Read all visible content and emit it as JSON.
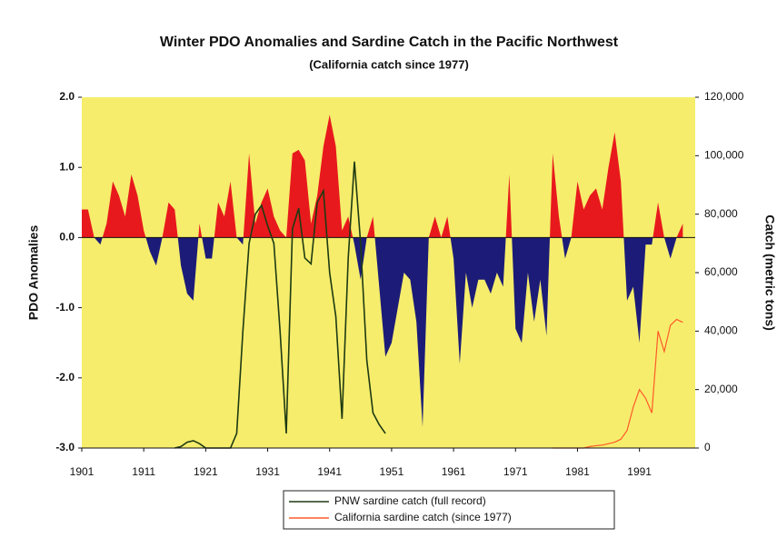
{
  "chart_data": {
    "type": "area-line",
    "title": "Winter PDO Anomalies and Sardine Catch in the Pacific Northwest",
    "subtitle": "(California catch since 1977)",
    "y_label": "PDO Anomalies",
    "y2_label": "Catch (metric tons)",
    "xlim": [
      1901,
      2000
    ],
    "xticks": [
      1901,
      1911,
      1921,
      1931,
      1941,
      1951,
      1961,
      1971,
      1981,
      1991
    ],
    "ylim": [
      -3,
      2
    ],
    "yticks": [
      {
        "value": 2,
        "label": "2.0"
      },
      {
        "value": 1,
        "label": "1.0"
      },
      {
        "value": 0,
        "label": "0.0"
      },
      {
        "value": -1,
        "label": "-1.0"
      },
      {
        "value": -2,
        "label": "-2.0"
      },
      {
        "value": -3,
        "label": "-3.0"
      }
    ],
    "y2lim": [
      0,
      120000
    ],
    "y2ticks": [
      0,
      {
        "value": 20000,
        "label": "20,000"
      },
      {
        "value": 40000,
        "label": "40,000"
      },
      {
        "value": 60000,
        "label": "60,000"
      },
      {
        "value": 80000,
        "label": "80,000"
      },
      {
        "value": 100000,
        "label": "100,000"
      },
      {
        "value": 120000,
        "label": "120,000"
      }
    ],
    "background": "#f6ed6c",
    "pdo": {
      "positive_color": "#e8191c",
      "negative_color": "#1c1c78",
      "x": [
        1901,
        1902,
        1903,
        1904,
        1905,
        1906,
        1907,
        1908,
        1909,
        1910,
        1911,
        1912,
        1913,
        1914,
        1915,
        1916,
        1917,
        1918,
        1919,
        1920,
        1921,
        1922,
        1923,
        1924,
        1925,
        1926,
        1927,
        1928,
        1929,
        1930,
        1931,
        1932,
        1933,
        1934,
        1935,
        1936,
        1937,
        1938,
        1939,
        1940,
        1941,
        1942,
        1943,
        1944,
        1945,
        1946,
        1947,
        1948,
        1949,
        1950,
        1951,
        1952,
        1953,
        1954,
        1955,
        1956,
        1957,
        1958,
        1959,
        1960,
        1961,
        1962,
        1963,
        1964,
        1965,
        1966,
        1967,
        1968,
        1969,
        1970,
        1971,
        1972,
        1973,
        1974,
        1975,
        1976,
        1977,
        1978,
        1979,
        1980,
        1981,
        1982,
        1983,
        1984,
        1985,
        1986,
        1987,
        1988,
        1989,
        1990,
        1991,
        1992,
        1993,
        1994,
        1995,
        1996,
        1997,
        1998
      ],
      "values": [
        0.4,
        0.4,
        0.0,
        -0.1,
        0.2,
        0.8,
        0.6,
        0.3,
        0.9,
        0.6,
        0.1,
        -0.2,
        -0.4,
        0.0,
        0.5,
        0.4,
        -0.4,
        -0.8,
        -0.9,
        0.2,
        -0.3,
        -0.3,
        0.5,
        0.3,
        0.8,
        0.0,
        -0.1,
        1.2,
        0.2,
        0.5,
        0.7,
        0.3,
        0.1,
        0.0,
        1.2,
        1.25,
        1.1,
        0.2,
        0.6,
        1.3,
        1.75,
        1.3,
        0.1,
        0.3,
        -0.1,
        -0.6,
        0.0,
        0.3,
        -0.7,
        -1.7,
        -1.5,
        -1.0,
        -0.5,
        -0.6,
        -1.2,
        -2.7,
        0.0,
        0.3,
        0.0,
        0.3,
        -0.3,
        -1.8,
        -0.5,
        -1.0,
        -0.6,
        -0.6,
        -0.8,
        -0.5,
        -0.7,
        0.9,
        -1.3,
        -1.5,
        -0.5,
        -1.2,
        -0.6,
        -1.4,
        1.2,
        0.3,
        -0.3,
        0.0,
        0.8,
        0.4,
        0.6,
        0.7,
        0.4,
        1.0,
        1.5,
        0.8,
        -0.9,
        -0.7,
        -1.5,
        -0.1,
        -0.1,
        0.5,
        0.0,
        -0.3,
        0.0,
        0.2
      ]
    },
    "series": [
      {
        "name": "PNW sardine catch (full record)",
        "color": "#1e3a12",
        "axis": "y2",
        "x": [
          1916,
          1917,
          1918,
          1919,
          1920,
          1921,
          1922,
          1923,
          1924,
          1925,
          1926,
          1927,
          1928,
          1929,
          1930,
          1931,
          1932,
          1933,
          1934,
          1935,
          1936,
          1937,
          1938,
          1939,
          1940,
          1941,
          1942,
          1943,
          1944,
          1945,
          1946,
          1947,
          1948,
          1949,
          1950
        ],
        "values": [
          0,
          500,
          2000,
          2500,
          1500,
          0,
          0,
          0,
          0,
          0,
          5000,
          40000,
          70000,
          80000,
          83000,
          76000,
          70000,
          40000,
          5000,
          75000,
          82000,
          65000,
          63000,
          84000,
          88000,
          60000,
          45000,
          10000,
          65000,
          98000,
          70000,
          30000,
          12000,
          8000,
          5000
        ]
      },
      {
        "name": "California sardine catch (since 1977)",
        "color": "#ff5a2a",
        "axis": "y2",
        "x": [
          1977,
          1978,
          1979,
          1980,
          1981,
          1982,
          1983,
          1984,
          1985,
          1986,
          1987,
          1988,
          1989,
          1990,
          1991,
          1992,
          1993,
          1994,
          1995,
          1996,
          1997,
          1998
        ],
        "values": [
          0,
          0,
          0,
          0,
          0,
          0,
          500,
          800,
          1000,
          1500,
          2000,
          3000,
          6000,
          14000,
          20000,
          17000,
          12000,
          40000,
          33000,
          42000,
          44000,
          43000
        ]
      }
    ]
  }
}
